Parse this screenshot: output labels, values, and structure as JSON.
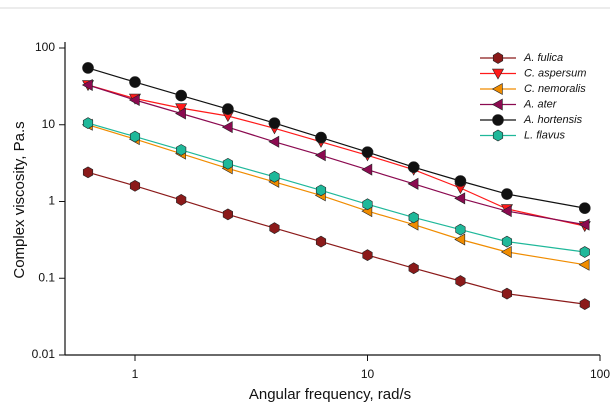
{
  "chart_data": {
    "type": "line",
    "x_label": "Angular frequency, rad/s",
    "y_label": "Complex viscosity, Pa.s",
    "xscale": "log",
    "yscale": "log",
    "xlim": [
      0.5,
      100
    ],
    "ylim": [
      0.01,
      100
    ],
    "xticks": [
      1,
      10,
      100
    ],
    "yticks": [
      0.01,
      0.1,
      1,
      10,
      100
    ],
    "legend": "top-right",
    "x": [
      0.628,
      1,
      1.58,
      2.51,
      3.98,
      6.31,
      10,
      15.8,
      25.1,
      39.8,
      86
    ],
    "series": [
      {
        "name": "A. fulica",
        "color": "#8b1a1a",
        "marker": "hexagon",
        "values": [
          2.4,
          1.6,
          1.05,
          0.68,
          0.45,
          0.3,
          0.2,
          0.135,
          0.092,
          0.063,
          0.046
        ]
      },
      {
        "name": "C. aspersum",
        "color": "#ff1a1a",
        "marker": "triangle-down",
        "values": [
          33,
          22,
          16.5,
          13,
          9,
          6,
          4,
          2.6,
          1.5,
          0.8,
          0.48
        ]
      },
      {
        "name": "C. nemoralis",
        "color": "#f08c00",
        "marker": "triangle-left",
        "values": [
          10,
          6.5,
          4.2,
          2.7,
          1.8,
          1.2,
          0.75,
          0.5,
          0.32,
          0.22,
          0.15
        ]
      },
      {
        "name": "A. ater",
        "color": "#8b0a50",
        "marker": "triangle-left",
        "values": [
          33,
          21,
          14,
          9.3,
          6,
          4,
          2.6,
          1.7,
          1.1,
          0.75,
          0.5
        ]
      },
      {
        "name": "A. hortensis",
        "color": "#111111",
        "marker": "circle",
        "values": [
          55,
          36,
          24,
          16,
          10.5,
          6.8,
          4.4,
          2.8,
          1.85,
          1.25,
          0.82
        ]
      },
      {
        "name": "L. flavus",
        "color": "#1fb89a",
        "marker": "hexagon",
        "values": [
          10.5,
          7,
          4.7,
          3.1,
          2.1,
          1.4,
          0.92,
          0.62,
          0.43,
          0.3,
          0.22
        ]
      }
    ]
  }
}
